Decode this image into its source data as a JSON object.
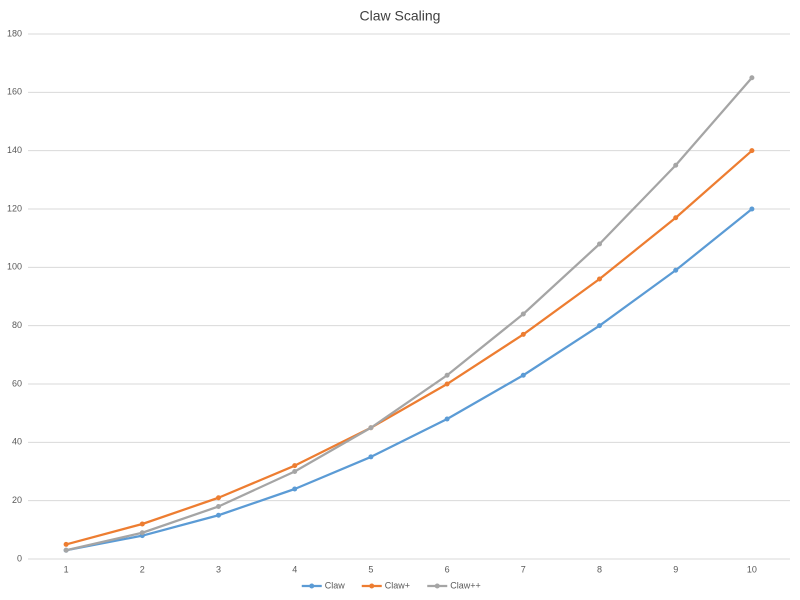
{
  "chart_data": {
    "type": "line",
    "title": "Claw Scaling",
    "categories": [
      "1",
      "2",
      "3",
      "4",
      "5",
      "6",
      "7",
      "8",
      "9",
      "10"
    ],
    "series": [
      {
        "name": "Claw",
        "color": "#5b9bd5",
        "values": [
          3,
          8,
          15,
          24,
          35,
          48,
          63,
          80,
          99,
          120
        ]
      },
      {
        "name": "Claw+",
        "color": "#ed7d31",
        "values": [
          5,
          12,
          21,
          32,
          45,
          60,
          77,
          96,
          117,
          140
        ]
      },
      {
        "name": "Claw++",
        "color": "#a5a5a5",
        "values": [
          3,
          9,
          18,
          30,
          45,
          63,
          84,
          108,
          135,
          165
        ]
      }
    ],
    "ylim": [
      0,
      180
    ],
    "yticks": [
      0,
      20,
      40,
      60,
      80,
      100,
      120,
      140,
      160,
      180
    ],
    "grid": true,
    "legend": "bottom"
  }
}
